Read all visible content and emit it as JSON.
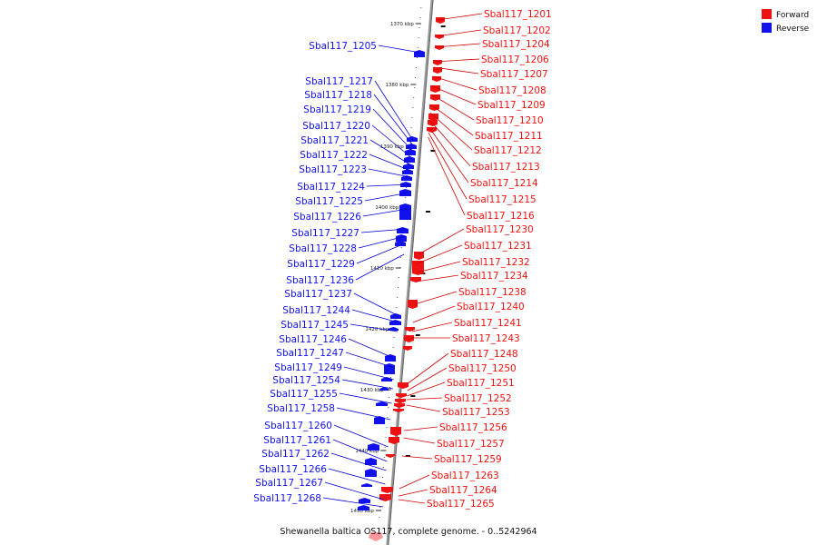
{
  "caption": "Shewanella baltica OS117, complete genome. - 0..5242964",
  "legend": [
    {
      "label": "Forward",
      "color": "#ee1111"
    },
    {
      "label": "Reverse",
      "color": "#1111ee"
    }
  ],
  "colors": {
    "forward": "#ee1111",
    "reverse": "#1111ee",
    "axis": "#888888",
    "leader_forward": "#cc0000",
    "leader_reverse": "#0000cc"
  },
  "ticks": [
    "1370 kbp",
    "1380 kbp",
    "1390 kbp",
    "1400 kbp",
    "1410 kbp",
    "1420 kbp",
    "1430 kbp",
    "1440 kbp",
    "1450 kbp"
  ],
  "genes": [
    {
      "name": "Sbal117_1201",
      "strand": "forward"
    },
    {
      "name": "Sbal117_1202",
      "strand": "forward"
    },
    {
      "name": "Sbal117_1204",
      "strand": "forward"
    },
    {
      "name": "Sbal117_1206",
      "strand": "forward"
    },
    {
      "name": "Sbal117_1207",
      "strand": "forward"
    },
    {
      "name": "Sbal117_1208",
      "strand": "forward"
    },
    {
      "name": "Sbal117_1209",
      "strand": "forward"
    },
    {
      "name": "Sbal117_1210",
      "strand": "forward"
    },
    {
      "name": "Sbal117_1211",
      "strand": "forward"
    },
    {
      "name": "Sbal117_1212",
      "strand": "forward"
    },
    {
      "name": "Sbal117_1213",
      "strand": "forward"
    },
    {
      "name": "Sbal117_1214",
      "strand": "forward"
    },
    {
      "name": "Sbal117_1215",
      "strand": "forward"
    },
    {
      "name": "Sbal117_1216",
      "strand": "forward"
    },
    {
      "name": "Sbal117_1230",
      "strand": "forward"
    },
    {
      "name": "Sbal117_1231",
      "strand": "forward"
    },
    {
      "name": "Sbal117_1232",
      "strand": "forward"
    },
    {
      "name": "Sbal117_1234",
      "strand": "forward"
    },
    {
      "name": "Sbal117_1238",
      "strand": "forward"
    },
    {
      "name": "Sbal117_1240",
      "strand": "forward"
    },
    {
      "name": "Sbal117_1241",
      "strand": "forward"
    },
    {
      "name": "Sbal117_1243",
      "strand": "forward"
    },
    {
      "name": "Sbal117_1248",
      "strand": "forward"
    },
    {
      "name": "Sbal117_1250",
      "strand": "forward"
    },
    {
      "name": "Sbal117_1251",
      "strand": "forward"
    },
    {
      "name": "Sbal117_1252",
      "strand": "forward"
    },
    {
      "name": "Sbal117_1253",
      "strand": "forward"
    },
    {
      "name": "Sbal117_1256",
      "strand": "forward"
    },
    {
      "name": "Sbal117_1257",
      "strand": "forward"
    },
    {
      "name": "Sbal117_1259",
      "strand": "forward"
    },
    {
      "name": "Sbal117_1263",
      "strand": "forward"
    },
    {
      "name": "Sbal117_1264",
      "strand": "forward"
    },
    {
      "name": "Sbal117_1265",
      "strand": "forward"
    },
    {
      "name": "Sbal117_1205",
      "strand": "reverse"
    },
    {
      "name": "Sbal117_1217",
      "strand": "reverse"
    },
    {
      "name": "Sbal117_1218",
      "strand": "reverse"
    },
    {
      "name": "Sbal117_1219",
      "strand": "reverse"
    },
    {
      "name": "Sbal117_1220",
      "strand": "reverse"
    },
    {
      "name": "Sbal117_1221",
      "strand": "reverse"
    },
    {
      "name": "Sbal117_1222",
      "strand": "reverse"
    },
    {
      "name": "Sbal117_1223",
      "strand": "reverse"
    },
    {
      "name": "Sbal117_1224",
      "strand": "reverse"
    },
    {
      "name": "Sbal117_1225",
      "strand": "reverse"
    },
    {
      "name": "Sbal117_1226",
      "strand": "reverse"
    },
    {
      "name": "Sbal117_1227",
      "strand": "reverse"
    },
    {
      "name": "Sbal117_1228",
      "strand": "reverse"
    },
    {
      "name": "Sbal117_1229",
      "strand": "reverse"
    },
    {
      "name": "Sbal117_1236",
      "strand": "reverse"
    },
    {
      "name": "Sbal117_1237",
      "strand": "reverse"
    },
    {
      "name": "Sbal117_1244",
      "strand": "reverse"
    },
    {
      "name": "Sbal117_1245",
      "strand": "reverse"
    },
    {
      "name": "Sbal117_1246",
      "strand": "reverse"
    },
    {
      "name": "Sbal117_1247",
      "strand": "reverse"
    },
    {
      "name": "Sbal117_1249",
      "strand": "reverse"
    },
    {
      "name": "Sbal117_1254",
      "strand": "reverse"
    },
    {
      "name": "Sbal117_1255",
      "strand": "reverse"
    },
    {
      "name": "Sbal117_1258",
      "strand": "reverse"
    },
    {
      "name": "Sbal117_1260",
      "strand": "reverse"
    },
    {
      "name": "Sbal117_1261",
      "strand": "reverse"
    },
    {
      "name": "Sbal117_1262",
      "strand": "reverse"
    },
    {
      "name": "Sbal117_1266",
      "strand": "reverse"
    },
    {
      "name": "Sbal117_1267",
      "strand": "reverse"
    },
    {
      "name": "Sbal117_1268",
      "strand": "reverse"
    }
  ]
}
